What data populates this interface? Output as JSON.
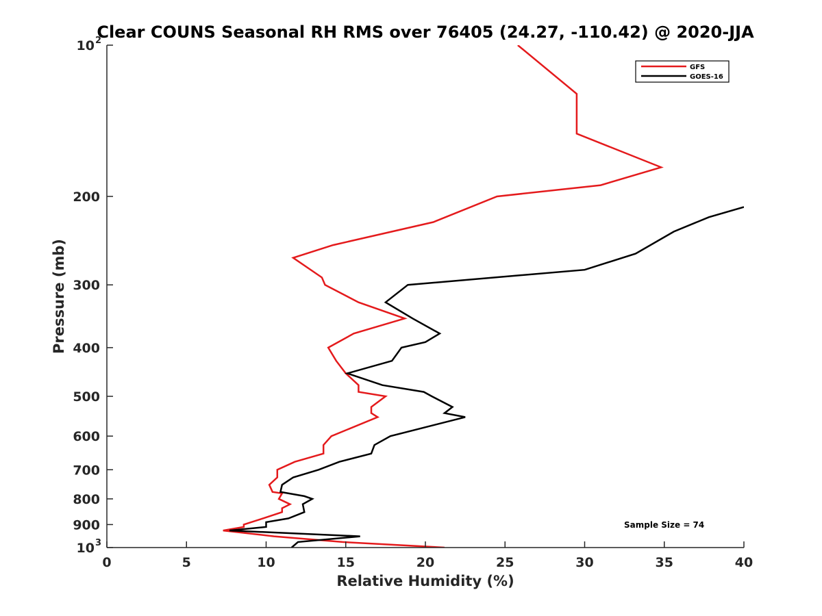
{
  "chart_data": {
    "type": "line",
    "title": "Clear COUNS Seasonal RH RMS over 76405 (24.27, -110.42) @ 2020-JJA",
    "xlabel": "Relative Humidity (%)",
    "ylabel": "Pressure (mb)",
    "xlim": [
      0,
      40
    ],
    "ylim": [
      100,
      1000
    ],
    "y_scale": "log",
    "y_reversed": true,
    "x_ticks": [
      {
        "value": 0,
        "label": "0"
      },
      {
        "value": 5,
        "label": "5"
      },
      {
        "value": 10,
        "label": "10"
      },
      {
        "value": 15,
        "label": "15"
      },
      {
        "value": 20,
        "label": "20"
      },
      {
        "value": 25,
        "label": "25"
      },
      {
        "value": 30,
        "label": "30"
      },
      {
        "value": 35,
        "label": "35"
      },
      {
        "value": 40,
        "label": "40"
      }
    ],
    "y_ticks": [
      {
        "value": 100,
        "base": "10",
        "exp": "2"
      },
      {
        "value": 200,
        "base": "200",
        "exp": ""
      },
      {
        "value": 300,
        "base": "300",
        "exp": ""
      },
      {
        "value": 400,
        "base": "400",
        "exp": ""
      },
      {
        "value": 500,
        "base": "500",
        "exp": ""
      },
      {
        "value": 600,
        "base": "600",
        "exp": ""
      },
      {
        "value": 700,
        "base": "700",
        "exp": ""
      },
      {
        "value": 800,
        "base": "800",
        "exp": ""
      },
      {
        "value": 900,
        "base": "900",
        "exp": ""
      },
      {
        "value": 1000,
        "base": "10",
        "exp": "3"
      }
    ],
    "grid": false,
    "legend_position": "top-right",
    "series": [
      {
        "name": "GFS",
        "color": "#e41a1c",
        "points": [
          {
            "x": 25.8,
            "y": 100
          },
          {
            "x": 29.5,
            "y": 125
          },
          {
            "x": 29.5,
            "y": 150
          },
          {
            "x": 34.8,
            "y": 175
          },
          {
            "x": 31.0,
            "y": 190
          },
          {
            "x": 24.5,
            "y": 200
          },
          {
            "x": 20.5,
            "y": 225
          },
          {
            "x": 14.2,
            "y": 250
          },
          {
            "x": 11.7,
            "y": 265
          },
          {
            "x": 13.5,
            "y": 290
          },
          {
            "x": 13.7,
            "y": 300
          },
          {
            "x": 15.8,
            "y": 325
          },
          {
            "x": 18.7,
            "y": 350
          },
          {
            "x": 15.5,
            "y": 375
          },
          {
            "x": 13.9,
            "y": 400
          },
          {
            "x": 14.4,
            "y": 425
          },
          {
            "x": 15.0,
            "y": 450
          },
          {
            "x": 15.8,
            "y": 475
          },
          {
            "x": 15.8,
            "y": 490
          },
          {
            "x": 17.5,
            "y": 500
          },
          {
            "x": 16.6,
            "y": 525
          },
          {
            "x": 16.6,
            "y": 540
          },
          {
            "x": 17.0,
            "y": 550
          },
          {
            "x": 14.1,
            "y": 600
          },
          {
            "x": 13.6,
            "y": 625
          },
          {
            "x": 13.6,
            "y": 650
          },
          {
            "x": 11.8,
            "y": 675
          },
          {
            "x": 10.7,
            "y": 700
          },
          {
            "x": 10.7,
            "y": 725
          },
          {
            "x": 10.2,
            "y": 750
          },
          {
            "x": 10.4,
            "y": 775
          },
          {
            "x": 11.0,
            "y": 780
          },
          {
            "x": 10.8,
            "y": 800
          },
          {
            "x": 11.5,
            "y": 820
          },
          {
            "x": 11.0,
            "y": 835
          },
          {
            "x": 11.0,
            "y": 850
          },
          {
            "x": 9.8,
            "y": 875
          },
          {
            "x": 8.6,
            "y": 900
          },
          {
            "x": 8.6,
            "y": 910
          },
          {
            "x": 7.3,
            "y": 925
          },
          {
            "x": 10.5,
            "y": 950
          },
          {
            "x": 14.8,
            "y": 975
          },
          {
            "x": 21.2,
            "y": 1000
          }
        ]
      },
      {
        "name": "GOES-16",
        "color": "#000000",
        "points": [
          {
            "x": 40.0,
            "y": 210
          },
          {
            "x": 37.8,
            "y": 220
          },
          {
            "x": 35.6,
            "y": 235
          },
          {
            "x": 33.2,
            "y": 260
          },
          {
            "x": 30.0,
            "y": 280
          },
          {
            "x": 18.9,
            "y": 300
          },
          {
            "x": 17.5,
            "y": 325
          },
          {
            "x": 19.2,
            "y": 350
          },
          {
            "x": 20.9,
            "y": 375
          },
          {
            "x": 20.0,
            "y": 390
          },
          {
            "x": 18.5,
            "y": 400
          },
          {
            "x": 17.9,
            "y": 425
          },
          {
            "x": 15.1,
            "y": 450
          },
          {
            "x": 17.3,
            "y": 475
          },
          {
            "x": 19.9,
            "y": 490
          },
          {
            "x": 20.4,
            "y": 500
          },
          {
            "x": 21.7,
            "y": 525
          },
          {
            "x": 21.2,
            "y": 540
          },
          {
            "x": 22.5,
            "y": 550
          },
          {
            "x": 17.8,
            "y": 600
          },
          {
            "x": 16.8,
            "y": 625
          },
          {
            "x": 16.6,
            "y": 650
          },
          {
            "x": 14.6,
            "y": 675
          },
          {
            "x": 13.3,
            "y": 700
          },
          {
            "x": 11.7,
            "y": 725
          },
          {
            "x": 11.0,
            "y": 750
          },
          {
            "x": 10.9,
            "y": 775
          },
          {
            "x": 12.4,
            "y": 790
          },
          {
            "x": 12.9,
            "y": 800
          },
          {
            "x": 12.3,
            "y": 820
          },
          {
            "x": 12.4,
            "y": 850
          },
          {
            "x": 11.4,
            "y": 875
          },
          {
            "x": 10.0,
            "y": 890
          },
          {
            "x": 10.0,
            "y": 910
          },
          {
            "x": 7.7,
            "y": 925
          },
          {
            "x": 15.9,
            "y": 950
          },
          {
            "x": 12.0,
            "y": 975
          },
          {
            "x": 11.6,
            "y": 1000
          }
        ]
      }
    ],
    "annotations": [
      {
        "text": "Sample Size = 74"
      }
    ]
  }
}
